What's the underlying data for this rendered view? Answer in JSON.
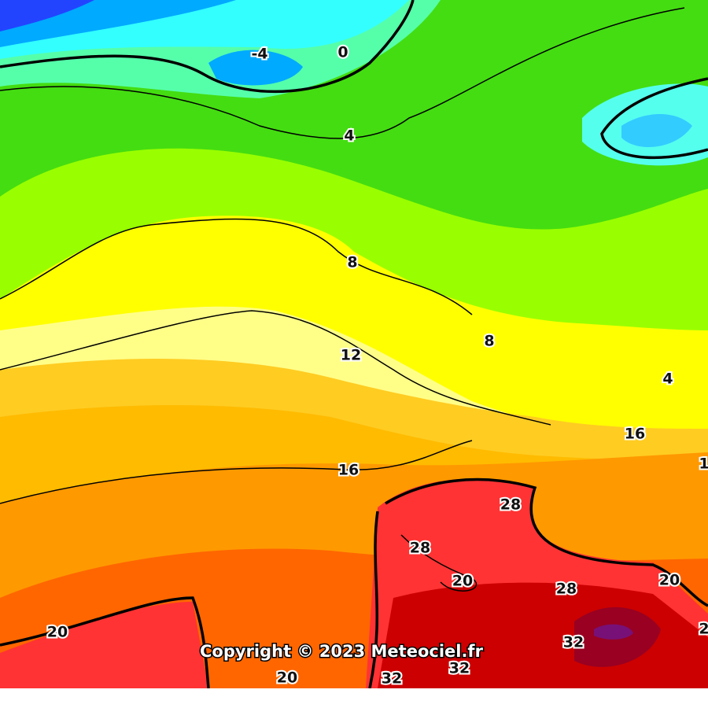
{
  "map": {
    "contour_labels": [
      "-4",
      "0",
      "4",
      "8",
      "8",
      "12",
      "4",
      "16",
      "16",
      "28",
      "28",
      "20",
      "28",
      "20",
      "20",
      "32",
      "20",
      "32",
      "32",
      "2",
      "1"
    ],
    "copyright": "Copyright © 2023 Meteociel.fr"
  }
}
